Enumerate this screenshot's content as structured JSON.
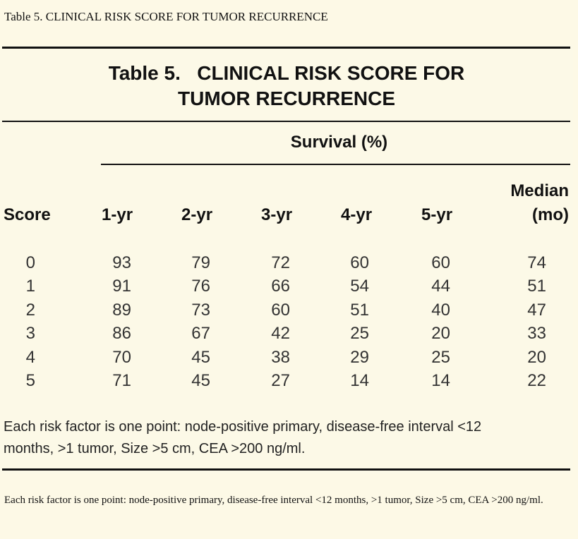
{
  "caption": "Table 5. CLINICAL RISK SCORE FOR TUMOR RECURRENCE",
  "table": {
    "title_line1": "Table 5.   CLINICAL RISK SCORE FOR",
    "title_line2": "TUMOR RECURRENCE",
    "span_header": "Survival (%)",
    "headers": {
      "score": "Score",
      "yr1": "1-yr",
      "yr2": "2-yr",
      "yr3": "3-yr",
      "yr4": "4-yr",
      "yr5": "5-yr",
      "median_line1": "Median",
      "median_line2": "(mo)"
    },
    "rows": [
      [
        "0",
        "93",
        "79",
        "72",
        "60",
        "60",
        "74"
      ],
      [
        "1",
        "91",
        "76",
        "66",
        "54",
        "44",
        "51"
      ],
      [
        "2",
        "89",
        "73",
        "60",
        "51",
        "40",
        "47"
      ],
      [
        "3",
        "86",
        "67",
        "42",
        "25",
        "20",
        "33"
      ],
      [
        "4",
        "70",
        "45",
        "38",
        "29",
        "25",
        "20"
      ],
      [
        "5",
        "71",
        "45",
        "27",
        "14",
        "14",
        "22"
      ]
    ],
    "footnote_line1": "Each risk factor is one point: node-positive primary, disease-free interval <12",
    "footnote_line2": "months, >1 tumor, Size >5 cm, CEA >200 ng/ml."
  },
  "footnote_text": "Each risk factor is one point: node-positive primary, disease-free interval <12 months, >1 tumor, Size >5 cm, CEA >200 ng/ml."
}
